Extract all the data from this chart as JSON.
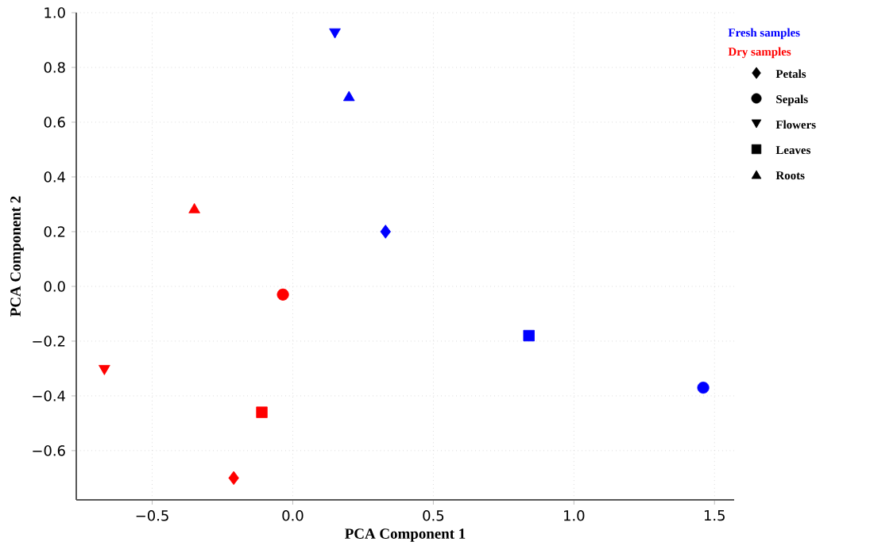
{
  "chart_data": {
    "type": "scatter",
    "xlabel": "PCA Component 1",
    "ylabel": "PCA Component 2",
    "xlim": [
      -0.77,
      1.57
    ],
    "ylim": [
      -0.78,
      1.0
    ],
    "xticks": [
      {
        "value": -0.5,
        "label": "−0.5"
      },
      {
        "value": 0,
        "label": "0.0"
      },
      {
        "value": 0.5,
        "label": "0.5"
      },
      {
        "value": 1,
        "label": "1.0"
      },
      {
        "value": 1.5,
        "label": "1.5"
      }
    ],
    "yticks": [
      {
        "value": -0.6,
        "label": "−0.6"
      },
      {
        "value": -0.4,
        "label": "−0.4"
      },
      {
        "value": -0.2,
        "label": "−0.2"
      },
      {
        "value": 0,
        "label": "0.0"
      },
      {
        "value": 0.2,
        "label": "0.2"
      },
      {
        "value": 0.4,
        "label": "0.4"
      },
      {
        "value": 0.6,
        "label": "0.6"
      },
      {
        "value": 0.8,
        "label": "0.8"
      },
      {
        "value": 1,
        "label": "1.0"
      }
    ],
    "grid": true,
    "legend": "right",
    "annotations": [
      "Petals",
      "Sepals",
      "Flowers",
      "Leaves",
      "Roots"
    ],
    "marker": [
      "diamond",
      "circle",
      "triangle down",
      "square",
      "triangle"
    ],
    "series": [
      {
        "name": "Fresh samples",
        "color": "#0000ff",
        "x": [
          0.33,
          1.46,
          0.15,
          0.84,
          0.2
        ],
        "values": [
          0.2,
          -0.37,
          0.93,
          -0.18,
          0.69
        ]
      },
      {
        "name": "Dry samples",
        "color": "#ff0000",
        "x": [
          -0.21,
          -0.035,
          -0.67,
          -0.11,
          -0.35
        ],
        "values": [
          -0.7,
          -0.03,
          -0.3,
          -0.46,
          0.28
        ]
      }
    ]
  }
}
